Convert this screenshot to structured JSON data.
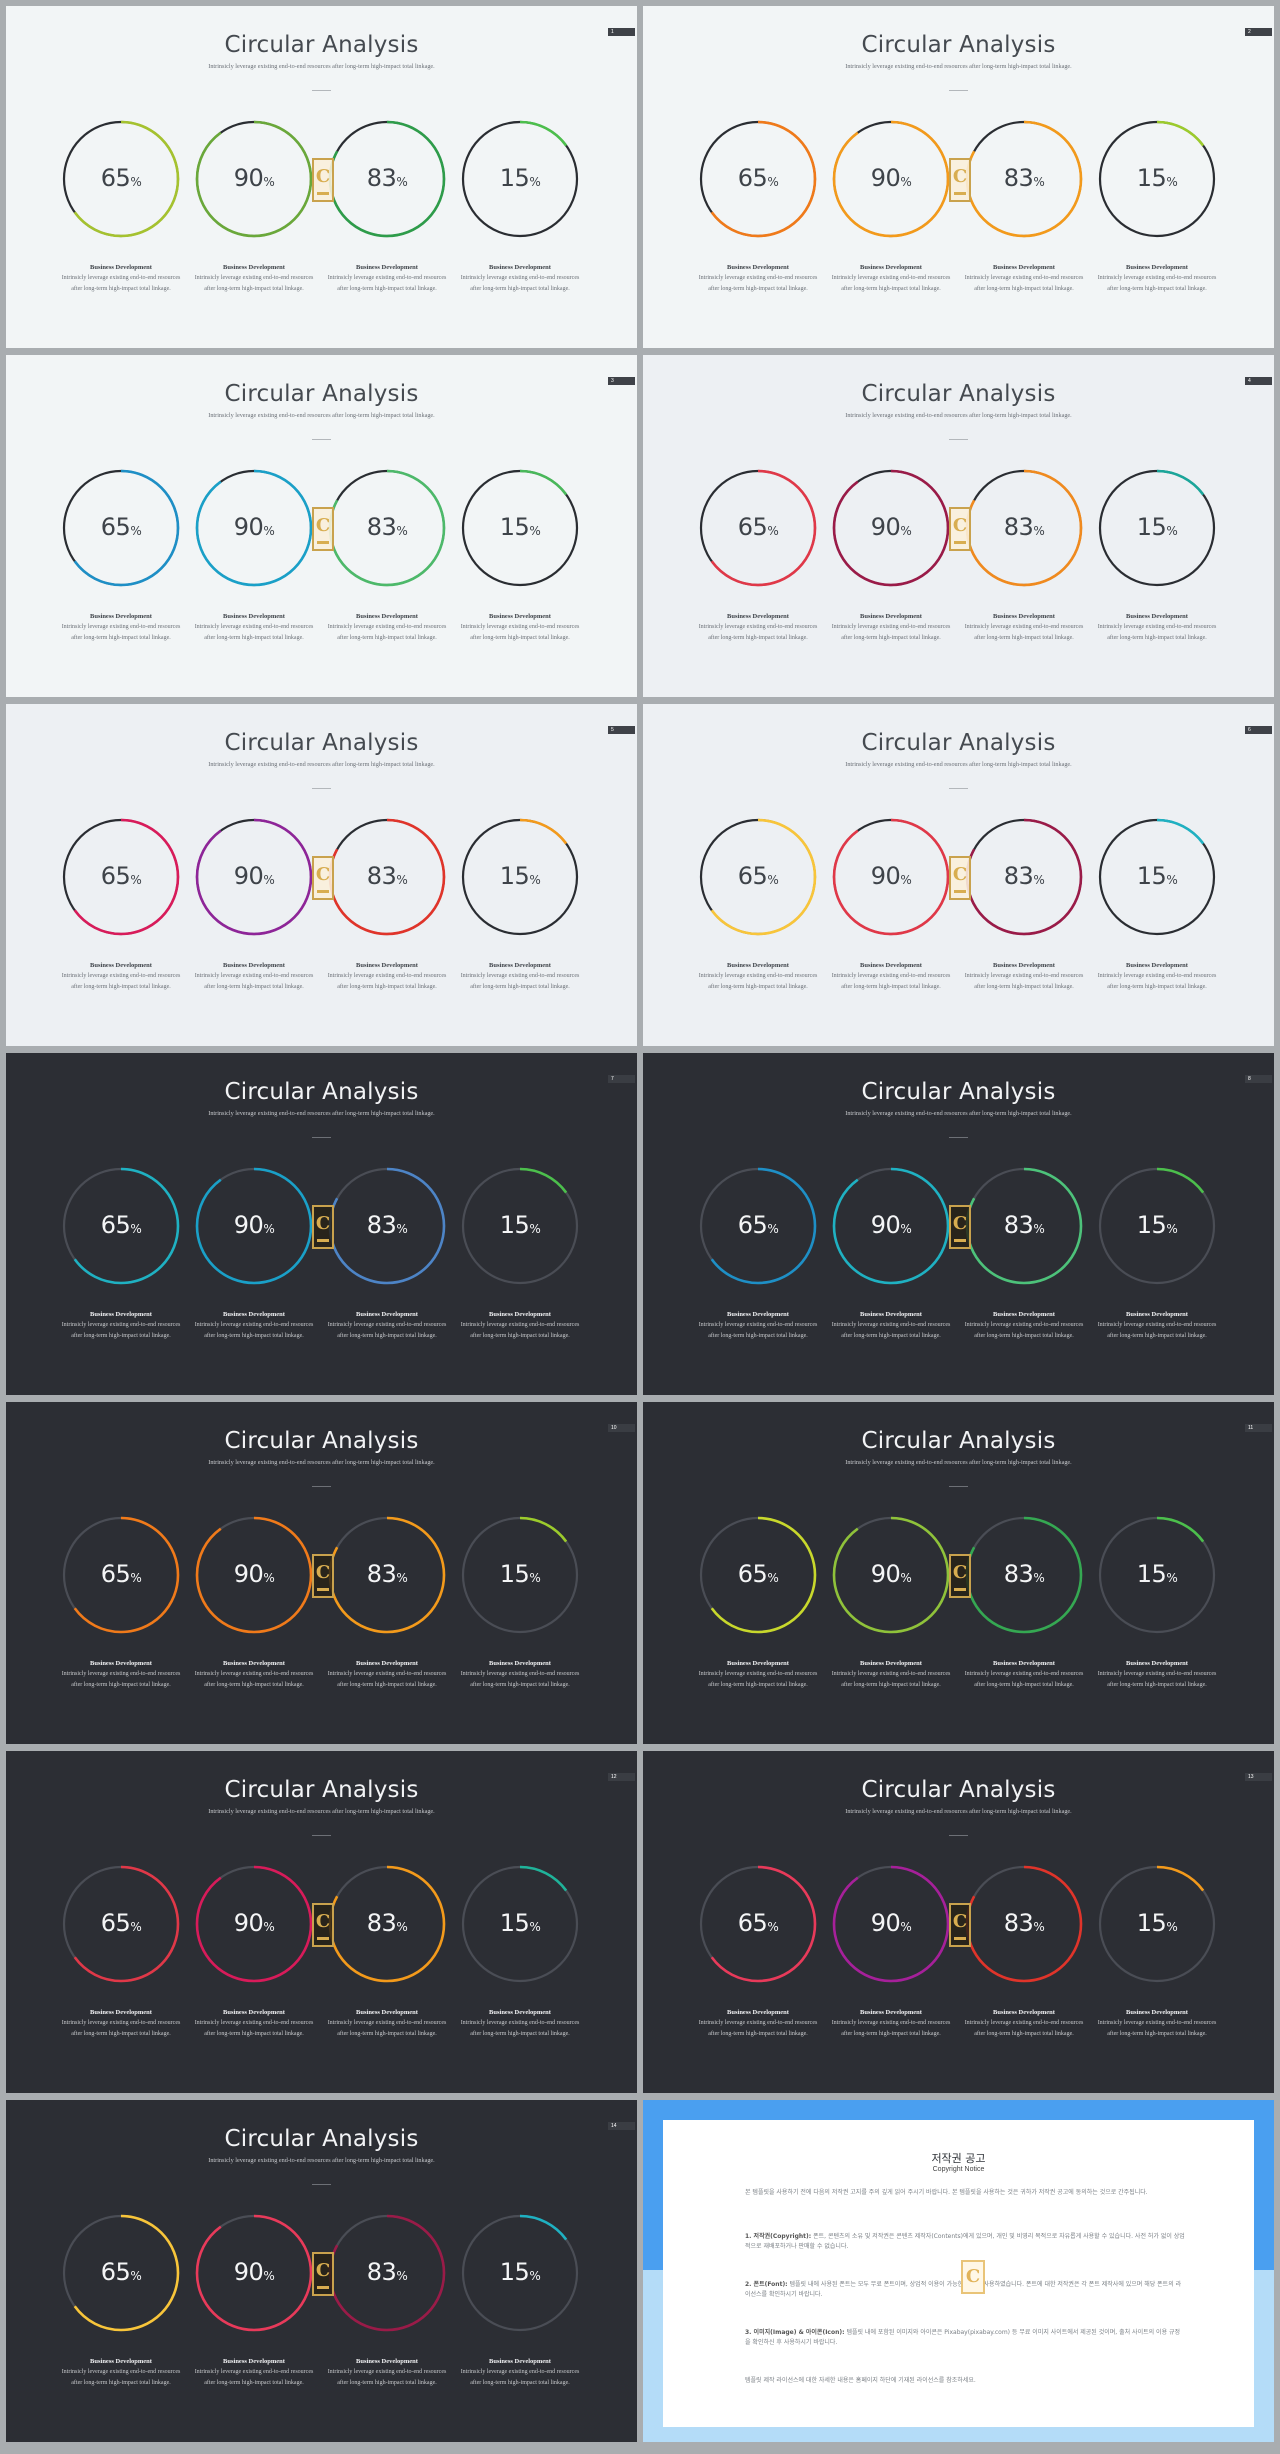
{
  "common": {
    "title": "Circular Analysis",
    "subtitle": "Intrinsicly leverage existing end-to-end resources after long-term high-impact total linkage.",
    "caption_heading": "Business Development",
    "caption_text": "Intrinsicly leverage existing end-to-end resources after long-term high-impact total linkage.",
    "watermark_letter": "C",
    "values": [
      65,
      90,
      83,
      15
    ],
    "percent_sign": "%"
  },
  "slides": [
    {
      "page": "1",
      "theme": "light1",
      "colors": [
        "#a5c22f",
        "#6aa83a",
        "#2e9c4a",
        "#4cbf4c"
      ],
      "track": "#2a2d32"
    },
    {
      "page": "2",
      "theme": "light1",
      "colors": [
        "#f07a1a",
        "#f39a1b",
        "#f39a1b",
        "#9ccb2c"
      ],
      "track": "#2a2d32"
    },
    {
      "page": "3",
      "theme": "light1",
      "colors": [
        "#1e8fc6",
        "#1aa0c8",
        "#4db96a",
        "#49b85a"
      ],
      "track": "#2a2d32"
    },
    {
      "page": "4",
      "theme": "light2",
      "colors": [
        "#e03848",
        "#9a1b48",
        "#f08a1e",
        "#1aa69a"
      ],
      "track": "#2a2d32"
    },
    {
      "page": "5",
      "theme": "light2",
      "colors": [
        "#d81b5a",
        "#8e2598",
        "#e0342a",
        "#f39a1b"
      ],
      "track": "#2a2d32"
    },
    {
      "page": "6",
      "theme": "light2",
      "colors": [
        "#f8c53a",
        "#e03848",
        "#9a1b48",
        "#1fb1c2"
      ],
      "track": "#2a2d32"
    },
    {
      "page": "7",
      "theme": "dark",
      "colors": [
        "#1fb1c2",
        "#1aa0c8",
        "#4d84c6",
        "#4cbf4c"
      ],
      "track": "#4a4d55"
    },
    {
      "page": "8",
      "theme": "dark",
      "colors": [
        "#1e8fc6",
        "#1fb1c2",
        "#4dc27a",
        "#4cbf4c"
      ],
      "track": "#4a4d55"
    },
    {
      "page": "10",
      "theme": "dark",
      "colors": [
        "#f07a1a",
        "#f07a1a",
        "#f39a1b",
        "#9ccb2c"
      ],
      "track": "#4a4d55"
    },
    {
      "page": "11",
      "theme": "dark",
      "colors": [
        "#c8d82c",
        "#8fc23a",
        "#35a852",
        "#4cbf4c"
      ],
      "track": "#4a4d55"
    },
    {
      "page": "12",
      "theme": "dark",
      "colors": [
        "#e03848",
        "#d81b5a",
        "#f39a1b",
        "#1fb39a"
      ],
      "track": "#4a4d55"
    },
    {
      "page": "13",
      "theme": "dark",
      "colors": [
        "#e83a5a",
        "#a6209a",
        "#e0342a",
        "#f39a1b"
      ],
      "track": "#4a4d55"
    },
    {
      "page": "14",
      "theme": "dark",
      "colors": [
        "#f8c53a",
        "#e83a5a",
        "#9a1b48",
        "#1fb1c2"
      ],
      "track": "#4a4d55"
    }
  ],
  "copyright": {
    "title": "저작권 공고",
    "subtitle": "Copyright Notice",
    "intro": "본 템플릿을 사용하기 전에 다음의 저작권 고지를 주의 깊게 읽어 주시기 바랍니다. 본 템플릿을 사용하는 것은 귀하가 저작권 공고에 동의하는 것으로 간주됩니다.",
    "p1_label": "1. 저작권(Copyright):",
    "p1": "폰트, 콘텐츠의 소유 및 저작권은 콘텐츠 제작자(Contents)에게 있으며, 개인 및 비영리 목적으로 자유롭게 사용할 수 있습니다. 사전 허가 없이 상업적으로 재배포하거나 판매할 수 없습니다.",
    "p2_label": "2. 폰트(Font):",
    "p2": "템플릿 내에 사용된 폰트는 모두 무료 폰트이며, 상업적 이용이 가능한 폰트를 사용하였습니다. 폰트에 대한 저작권은 각 폰트 제작사에 있으며 해당 폰트의 라이선스를 확인하시기 바랍니다.",
    "p3_label": "3. 이미지(Image) & 아이콘(Icon):",
    "p3": "템플릿 내에 포함된 이미지와 아이콘은 Pixabay(pixabay.com) 등 무료 이미지 사이트에서 제공된 것이며, 출처 사이트의 이용 규정을 확인하신 후 사용하시기 바랍니다.",
    "outro": "템플릿 제작 라이선스에 대한 자세한 내용은 홈페이지 하단에 기재된 라이선스를 참조하세요."
  }
}
